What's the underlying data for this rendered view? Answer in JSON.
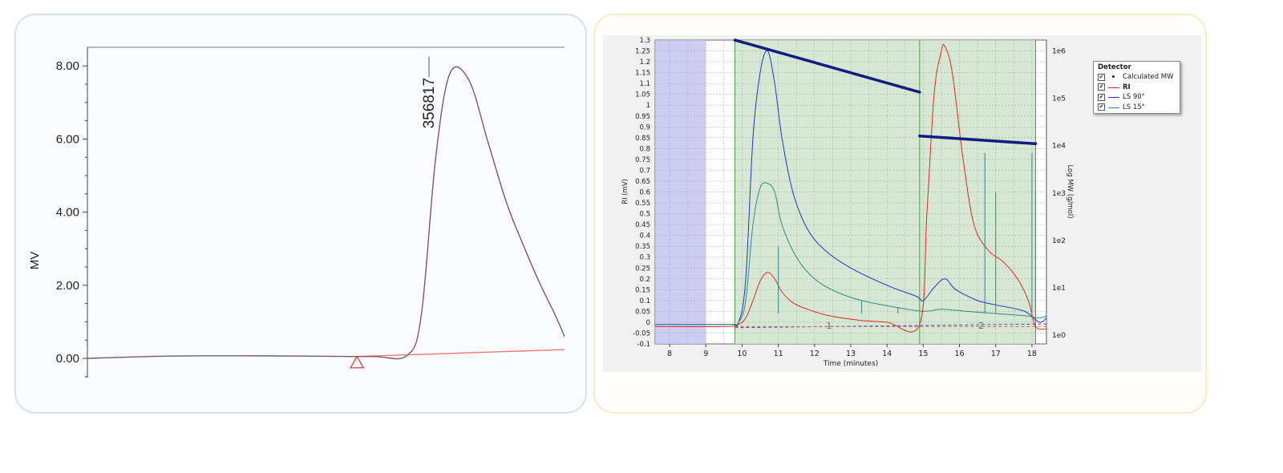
{
  "chart_data": [
    {
      "type": "line",
      "title": "",
      "xlabel": "",
      "ylabel": "MV",
      "ylim": [
        -0.5,
        8.3
      ],
      "yticks": [
        "0.00",
        "2.00",
        "4.00",
        "6.00",
        "8.00"
      ],
      "grid": false,
      "x": [
        0,
        16,
        32,
        48,
        60,
        67,
        70,
        73,
        76,
        80,
        84,
        88,
        92,
        95,
        98,
        100
      ],
      "series": [
        {
          "values": [
            0.0,
            0.06,
            0.07,
            0.06,
            0.05,
            0.08,
            1.2,
            5.5,
            7.8,
            7.6,
            5.9,
            4.2,
            2.9,
            2.0,
            1.2,
            0.6
          ]
        }
      ],
      "baseline": [
        0.05,
        0.24
      ],
      "peak_label": "356817",
      "peak_marker": "triangle"
    },
    {
      "type": "line",
      "title": "",
      "xlabel": "Time (minutes)",
      "ylabel": "RI (mV)",
      "ylabel_right": "Log MW (g/mol)",
      "xlim": [
        7.6,
        18.4
      ],
      "ylim": [
        -0.1,
        1.3
      ],
      "xticks": [
        "8",
        "9",
        "10",
        "11",
        "12",
        "13",
        "14",
        "15",
        "16",
        "17",
        "18"
      ],
      "yticks": [
        "-0.1",
        "-0.05",
        "0",
        "0.05",
        "0.1",
        "0.15",
        "0.2",
        "0.25",
        "0.3",
        "0.35",
        "0.4",
        "0.45",
        "0.5",
        "0.55",
        "0.6",
        "0.65",
        "0.7",
        "0.75",
        "0.8",
        "0.85",
        "0.9",
        "0.95",
        "1",
        "1.05",
        "1.1",
        "1.15",
        "1.2",
        "1.25",
        "1.3"
      ],
      "y2ticks": [
        "1e0",
        "1e1",
        "1e2",
        "1e3",
        "1e4",
        "1e5",
        "1e6"
      ],
      "y2lim": [
        1,
        1000000
      ],
      "y2scale": "log",
      "grid": true,
      "legend_position": "right",
      "legend": {
        "title": "Detector",
        "checkmark": "✔",
        "entries": [
          "Calculated MW",
          "RI",
          "LS 90°",
          "LS 15°"
        ]
      },
      "colors": {
        "ri": "#e8281e",
        "ls90": "#1f33cc",
        "ls15": "#2e8a86",
        "mw": "#121c82",
        "region_blue": "#c8c8f3",
        "region_green": "#d2e6ce"
      },
      "regions": [
        {
          "from": 7.6,
          "to": 9.0,
          "color": "blue"
        },
        {
          "from": 9.8,
          "to": 18.1,
          "color": "green"
        }
      ],
      "peak_numbers": [
        {
          "x": 12.4,
          "text": "1"
        },
        {
          "x": 16.6,
          "text": "2"
        }
      ],
      "series": [
        {
          "name": "LS 90°",
          "x": [
            7.6,
            9.6,
            9.9,
            10.1,
            10.3,
            10.5,
            10.7,
            10.9,
            11.1,
            11.4,
            11.8,
            12.3,
            13.0,
            14.0,
            14.8,
            15.0,
            15.3,
            15.6,
            15.9,
            16.5,
            17.0,
            17.8,
            18.2,
            18.4
          ],
          "y": [
            -0.01,
            -0.01,
            0.0,
            0.2,
            0.85,
            1.15,
            1.25,
            1.1,
            0.85,
            0.6,
            0.43,
            0.33,
            0.25,
            0.17,
            0.12,
            0.1,
            0.16,
            0.2,
            0.15,
            0.1,
            0.08,
            0.05,
            0.0,
            0.02
          ]
        },
        {
          "name": "LS 15°",
          "x": [
            7.6,
            9.6,
            9.9,
            10.1,
            10.3,
            10.5,
            10.7,
            10.9,
            11.1,
            11.5,
            12.0,
            12.6,
            13.3,
            14.2,
            15.0,
            15.5,
            16.2,
            17.0,
            17.8,
            18.2,
            18.4
          ],
          "y": [
            -0.01,
            -0.01,
            0.0,
            0.1,
            0.45,
            0.62,
            0.64,
            0.6,
            0.45,
            0.3,
            0.2,
            0.14,
            0.1,
            0.07,
            0.05,
            0.06,
            0.05,
            0.04,
            0.03,
            0.02,
            0.03
          ]
        },
        {
          "name": "RI",
          "x": [
            7.6,
            9.6,
            9.9,
            10.1,
            10.3,
            10.5,
            10.7,
            10.9,
            11.1,
            11.4,
            11.8,
            12.4,
            13.2,
            14.0,
            14.9,
            15.1,
            15.3,
            15.5,
            15.6,
            15.8,
            16.1,
            16.4,
            16.8,
            17.2,
            17.6,
            17.9,
            18.1,
            18.4
          ],
          "y": [
            -0.02,
            -0.02,
            -0.01,
            0.02,
            0.1,
            0.19,
            0.23,
            0.2,
            0.14,
            0.09,
            0.06,
            0.03,
            0.01,
            0.0,
            -0.01,
            0.5,
            1.05,
            1.25,
            1.27,
            1.15,
            0.75,
            0.45,
            0.33,
            0.28,
            0.2,
            0.1,
            -0.02,
            -0.03
          ]
        },
        {
          "name": "Calculated MW",
          "segments": [
            {
              "x": [
                9.8,
                14.9
              ],
              "y": [
                1700000,
                135000
              ]
            },
            {
              "x": [
                14.9,
                18.1
              ],
              "y": [
                16000,
                11000
              ]
            }
          ]
        }
      ]
    }
  ]
}
